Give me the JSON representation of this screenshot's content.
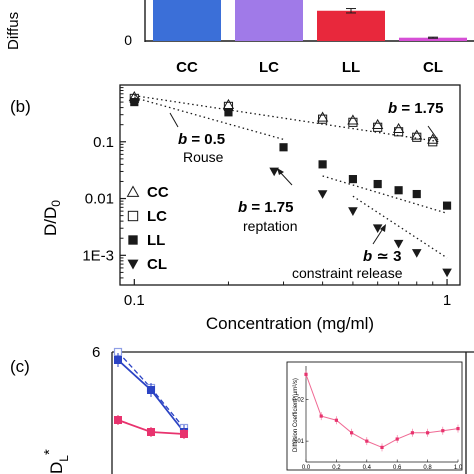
{
  "panels": {
    "a": {
      "ytick_top": "",
      "ytick_zero": "0",
      "ylabel": "Diffus"
    },
    "b": {
      "label": "(b)"
    },
    "c": {
      "label": "(c)"
    }
  },
  "annotations": {
    "b_rouse": {
      "b": "b",
      "eq": " = 0.5",
      "sub": "Rouse"
    },
    "b_rept": {
      "b": "b",
      "eq": " = 1.75",
      "sub": "reptation"
    },
    "b_cr": {
      "b": "b",
      "eq": " ≃ 3",
      "sub": "constraint release"
    },
    "b_top": {
      "b": "b",
      "eq": " = 1.75"
    }
  },
  "colors": {
    "CC": "#3b6fd8",
    "LC": "#a07ae8",
    "LL": "#e8283c",
    "CL": "#d64fd6",
    "dark": "#1a1a1a",
    "blue_line": "#2b43c4",
    "pink_line": "#e8336e"
  },
  "chart_data": [
    {
      "id": "a",
      "type": "bar",
      "categories": [
        "CC",
        "LC",
        "LL",
        "CL"
      ],
      "values": [
        1.0,
        0.97,
        0.55,
        0.06
      ],
      "errors": [
        0.03,
        0.03,
        0.04,
        0.01
      ],
      "ylabel": "Diffus",
      "ylim": [
        0,
        1.0
      ]
    },
    {
      "id": "b",
      "type": "scatter",
      "xscale": "log",
      "yscale": "log",
      "xlabel": "Concentration (mg/ml)",
      "ylabel": "D/D0",
      "xlim": [
        0.09,
        1.1
      ],
      "ylim": [
        0.0003,
        1.0
      ],
      "xticks": [
        {
          "v": 0.1,
          "label": "0.1"
        },
        {
          "v": 1,
          "label": "1"
        }
      ],
      "yticks": [
        {
          "v": 0.1,
          "label": "0.1"
        },
        {
          "v": 0.01,
          "label": "0.01"
        },
        {
          "v": 0.001,
          "label": "1E-3"
        }
      ],
      "legend": {
        "position": "left",
        "entries": [
          "CC",
          "LC",
          "LL",
          "CL"
        ]
      },
      "series": [
        {
          "name": "CC",
          "marker": "triangle-open",
          "x": [
            0.1,
            0.2,
            0.4,
            0.5,
            0.6,
            0.7,
            0.8,
            0.9
          ],
          "y": [
            0.62,
            0.45,
            0.27,
            0.24,
            0.2,
            0.17,
            0.13,
            0.11
          ]
        },
        {
          "name": "LC",
          "marker": "square-open",
          "x": [
            0.1,
            0.2,
            0.4,
            0.5,
            0.6,
            0.7,
            0.8,
            0.9
          ],
          "y": [
            0.58,
            0.42,
            0.25,
            0.22,
            0.18,
            0.15,
            0.12,
            0.1
          ]
        },
        {
          "name": "LL",
          "marker": "square-filled",
          "x": [
            0.1,
            0.2,
            0.3,
            0.4,
            0.5,
            0.6,
            0.7,
            0.8,
            1.0
          ],
          "y": [
            0.5,
            0.33,
            0.08,
            0.04,
            0.022,
            0.018,
            0.014,
            0.012,
            0.0075
          ]
        },
        {
          "name": "CL",
          "marker": "triangle-down-filled",
          "x": [
            0.28,
            0.4,
            0.5,
            0.6,
            0.7,
            0.8,
            1.0
          ],
          "y": [
            0.03,
            0.012,
            0.006,
            0.003,
            0.0016,
            0.0011,
            0.0005
          ]
        }
      ],
      "fits": [
        {
          "x": [
            0.1,
            0.95
          ],
          "y": [
            0.65,
            0.1
          ]
        },
        {
          "x": [
            0.1,
            0.3
          ],
          "y": [
            0.6,
            0.11
          ]
        },
        {
          "x": [
            0.4,
            1.0
          ],
          "y": [
            0.025,
            0.0055
          ]
        },
        {
          "x": [
            0.5,
            1.0
          ],
          "y": [
            0.011,
            0.0009
          ]
        }
      ]
    },
    {
      "id": "c",
      "type": "line",
      "ylabel": "D_L*",
      "ytick_top": "6",
      "series": [
        {
          "name": "blue-open",
          "x": [
            0,
            1,
            2
          ],
          "y": [
            6.0,
            4.2,
            2.2
          ]
        },
        {
          "name": "blue-filled",
          "x": [
            0,
            1,
            2
          ],
          "y": [
            5.6,
            4.1,
            2.0
          ]
        },
        {
          "name": "pink",
          "x": [
            0,
            1,
            2
          ],
          "y": [
            2.6,
            2.0,
            1.9
          ]
        }
      ]
    },
    {
      "id": "c-inset",
      "type": "line",
      "ylabel": "Diffusion Coefficient (µm²/s)",
      "xticks": [
        "0.0",
        "0.2",
        "0.4",
        "0.6",
        "0.8",
        "1.0"
      ],
      "yticks": [
        "0.02",
        "0.01"
      ],
      "series": [
        {
          "name": "",
          "x": [
            0.0,
            0.1,
            0.2,
            0.3,
            0.4,
            0.5,
            0.6,
            0.7,
            0.8,
            0.9,
            1.0
          ],
          "y": [
            0.026,
            0.016,
            0.015,
            0.012,
            0.01,
            0.0085,
            0.0105,
            0.012,
            0.012,
            0.0125,
            0.013
          ]
        }
      ]
    }
  ]
}
